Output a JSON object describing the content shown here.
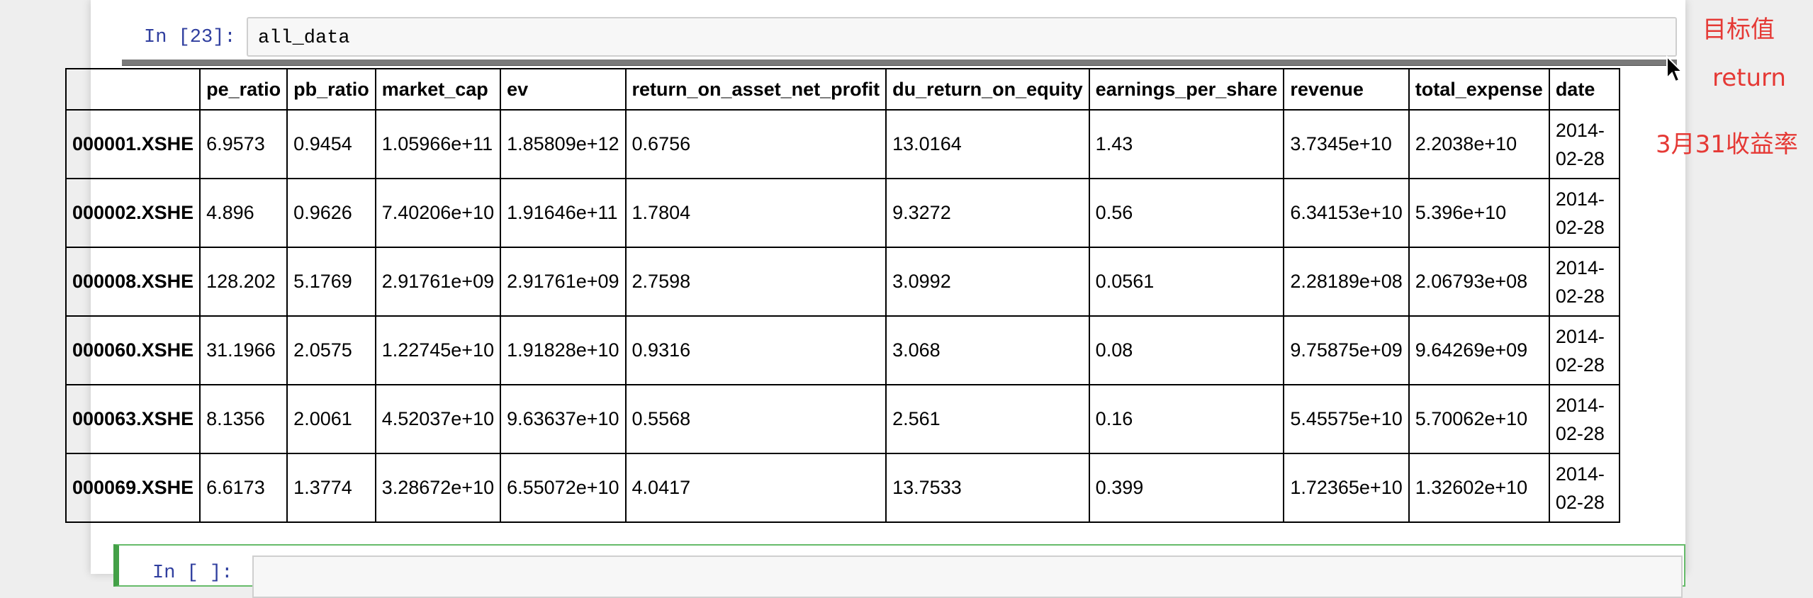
{
  "cell": {
    "prompt": "In [23]:",
    "code": "all_data"
  },
  "next_cell": {
    "prompt": "In [ ]:"
  },
  "table": {
    "columns": [
      "pe_ratio",
      "pb_ratio",
      "market_cap",
      "ev",
      "return_on_asset_net_profit",
      "du_return_on_equity",
      "earnings_per_share",
      "revenue",
      "total_expense",
      "date"
    ],
    "rows": [
      {
        "index": "000001.XSHE",
        "cells": [
          "6.9573",
          "0.9454",
          "1.05966e+11",
          "1.85809e+12",
          "0.6756",
          "13.0164",
          "1.43",
          "3.7345e+10",
          "2.2038e+10"
        ],
        "date": "2014-02-28"
      },
      {
        "index": "000002.XSHE",
        "cells": [
          "4.896",
          "0.9626",
          "7.40206e+10",
          "1.91646e+11",
          "1.7804",
          "9.3272",
          "0.56",
          "6.34153e+10",
          "5.396e+10"
        ],
        "date": "2014-02-28"
      },
      {
        "index": "000008.XSHE",
        "cells": [
          "128.202",
          "5.1769",
          "2.91761e+09",
          "2.91761e+09",
          "2.7598",
          "3.0992",
          "0.0561",
          "2.28189e+08",
          "2.06793e+08"
        ],
        "date": "2014-02-28"
      },
      {
        "index": "000060.XSHE",
        "cells": [
          "31.1966",
          "2.0575",
          "1.22745e+10",
          "1.91828e+10",
          "0.9316",
          "3.068",
          "0.08",
          "9.75875e+09",
          "9.64269e+09"
        ],
        "date": "2014-02-28"
      },
      {
        "index": "000063.XSHE",
        "cells": [
          "8.1356",
          "2.0061",
          "4.52037e+10",
          "9.63637e+10",
          "0.5568",
          "2.561",
          "0.16",
          "5.45575e+10",
          "5.70062e+10"
        ],
        "date": "2014-02-28"
      },
      {
        "index": "000069.XSHE",
        "cells": [
          "6.6173",
          "1.3774",
          "3.28672e+10",
          "6.55072e+10",
          "4.0417",
          "13.7533",
          "0.399",
          "1.72365e+10",
          "1.32602e+10"
        ],
        "date": "2014-02-28"
      }
    ]
  },
  "annotations": {
    "target": "目标值",
    "return": "return",
    "march_return": "3月31收益率",
    "color": "#e53935"
  }
}
